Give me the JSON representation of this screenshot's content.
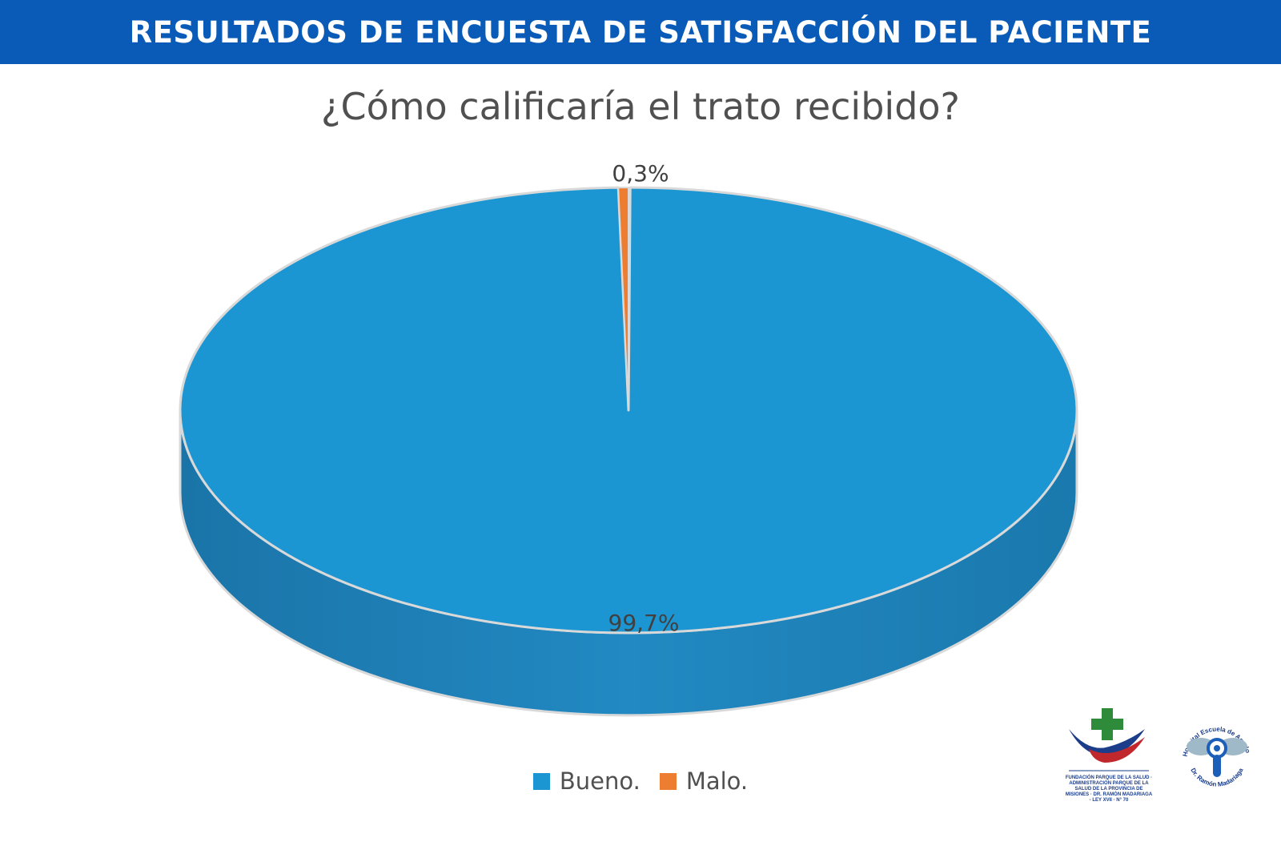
{
  "header": {
    "title": "RESULTADOS DE ENCUESTA DE SATISFACCIÓN DEL PACIENTE"
  },
  "colors": {
    "header_bg": "#0a5bb8",
    "bueno": "#1b96d3",
    "malo": "#ed7d31"
  },
  "chart_data": {
    "type": "pie",
    "title": "¿Cómo calificaría el trato recibido?",
    "categories": [
      "Bueno.",
      "Malo."
    ],
    "values": [
      99.7,
      0.3
    ],
    "data_labels": [
      "99,7%",
      "0,3%"
    ],
    "colors": [
      "#1b96d3",
      "#ed7d31"
    ],
    "style": "3d",
    "legend_position": "bottom"
  },
  "legend": {
    "items": [
      {
        "label": "Bueno.",
        "color": "#1b96d3"
      },
      {
        "label": "Malo.",
        "color": "#ed7d31"
      }
    ]
  },
  "logos": {
    "left_text": "FUNDACIÓN PARQUE DE LA SALUD · ADMINISTRACIÓN PARQUE DE LA SALUD DE LA PROVINCIA DE MISIONES · DR. RAMÓN MADARIAGA - LEY XVII · N° 70",
    "right_top_text": "Hospital Escuela de Agudos",
    "right_bottom_text": "Dr. Ramón Madariaga"
  }
}
